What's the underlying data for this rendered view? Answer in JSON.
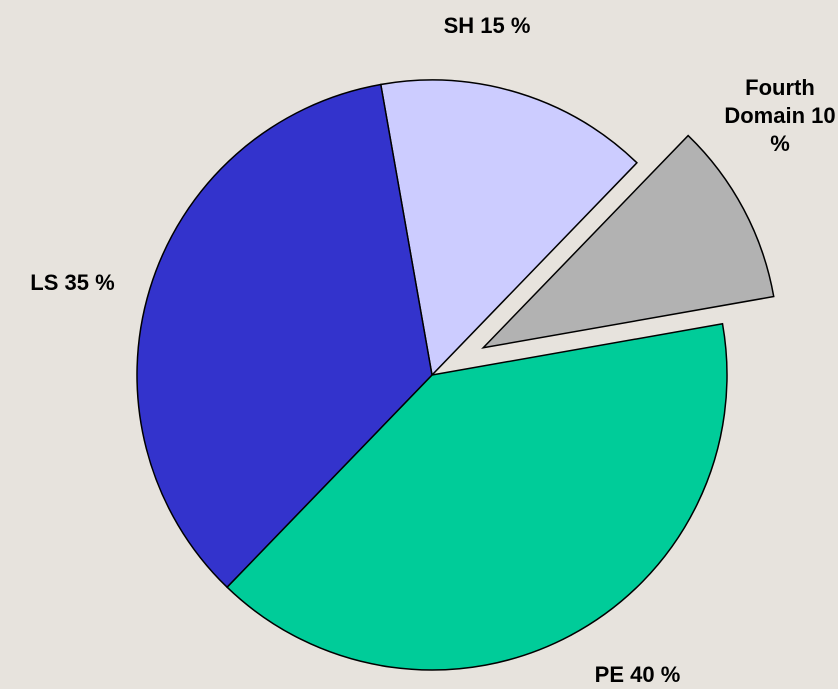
{
  "chart_data": {
    "type": "pie",
    "categories": [
      "SH",
      "Fourth Domain",
      "PE",
      "LS"
    ],
    "values": [
      15,
      10,
      40,
      35
    ],
    "value_labels": [
      "15 %",
      "10 %",
      "40 %",
      "35 %"
    ],
    "colors": [
      "#ccccff",
      "#b2b2b2",
      "#00cc99",
      "#3333cc"
    ]
  }
}
